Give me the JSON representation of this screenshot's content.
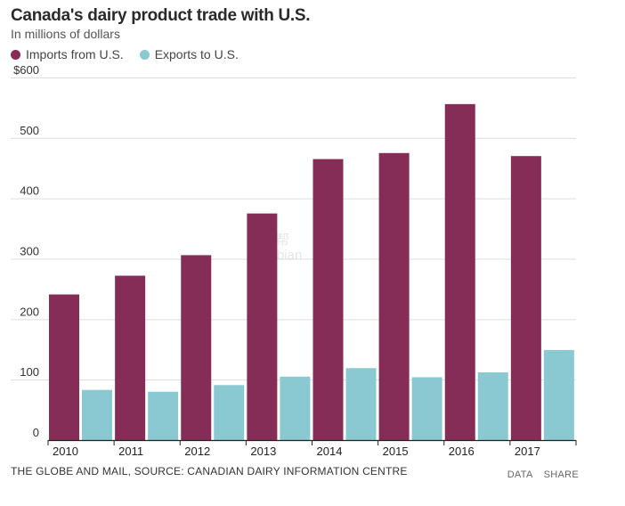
{
  "header": {
    "title": "Canada's dairy product trade with U.S.",
    "subtitle": "In millions of dollars"
  },
  "footer": {
    "source": "THE GLOBE AND MAIL, SOURCE: CANADIAN DAIRY INFORMATION CENTRE",
    "data_link": "DATA",
    "share_link": "SHARE"
  },
  "watermark": {
    "line1": "海邦帮",
    "line2": "Hinabian"
  },
  "colors": {
    "imports": "#862d57",
    "exports": "#8ac9d1",
    "grid": "#dddddd",
    "axis": "#222222"
  },
  "chart_data": {
    "type": "bar",
    "title": "Canada's dairy product trade with U.S.",
    "subtitle": "In millions of dollars",
    "categories": [
      "2010",
      "2011",
      "2012",
      "2013",
      "2014",
      "2015",
      "2016",
      "2017"
    ],
    "series": [
      {
        "name": "Imports from U.S.",
        "values": [
          241,
          272,
          306,
          375,
          465,
          475,
          556,
          470
        ]
      },
      {
        "name": "Exports to U.S.",
        "values": [
          83,
          80,
          91,
          105,
          119,
          104,
          112,
          149
        ]
      }
    ],
    "yticks": [
      "0",
      "100",
      "200",
      "300",
      "400",
      "500",
      "$600"
    ],
    "ylim": [
      0,
      600
    ],
    "xlabel": "",
    "ylabel": "",
    "legend": "top-left",
    "grid": true
  }
}
